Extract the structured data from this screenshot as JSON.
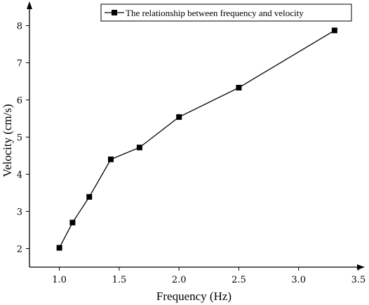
{
  "chart_data": {
    "type": "line",
    "xlabel": "Frequency (Hz)",
    "ylabel": "Velocity (cm/s)",
    "xlim": [
      0.75,
      3.5
    ],
    "ylim": [
      1.5,
      8.5
    ],
    "xticks": [
      1.0,
      1.5,
      2.0,
      2.5,
      3.0,
      3.5
    ],
    "xtick_labels": [
      "1.0",
      "1.5",
      "2.0",
      "2.5",
      "3.0",
      "3.5"
    ],
    "yticks": [
      2,
      3,
      4,
      5,
      6,
      7,
      8
    ],
    "ytick_labels": [
      "2",
      "3",
      "4",
      "5",
      "6",
      "7",
      "8"
    ],
    "grid": false,
    "legend_position": "top-right",
    "series": [
      {
        "name": "The relationship between frequency and velocity",
        "marker": "square",
        "color": "#000000",
        "x": [
          1.0,
          1.11,
          1.25,
          1.43,
          1.67,
          2.0,
          2.5,
          3.3
        ],
        "y": [
          2.02,
          2.7,
          3.39,
          4.4,
          4.72,
          5.54,
          6.33,
          7.87
        ]
      }
    ]
  }
}
